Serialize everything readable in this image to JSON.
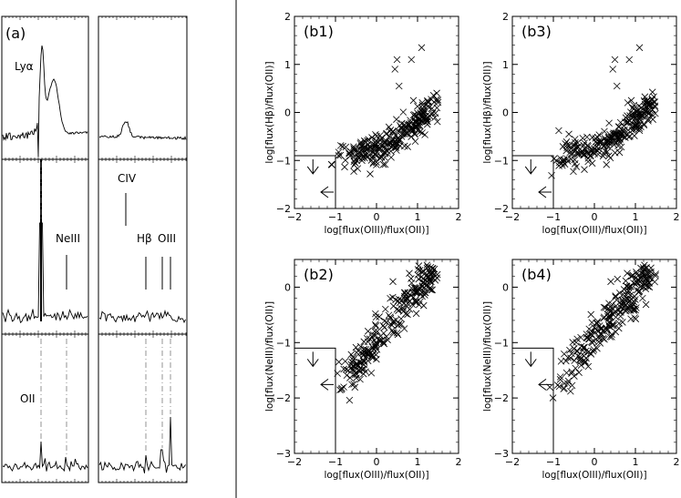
{
  "chart_data": [
    {
      "type": "line",
      "panel": "(a)",
      "description_note": "",
      "labels": {
        "panel": "(a)",
        "lya": "Lyα",
        "civ": "CIV",
        "neiii": "NeIII",
        "hbeta": "Hβ",
        "oiii": "OIII",
        "oii": "OII"
      }
    },
    {
      "type": "scatter",
      "panel": "(b1)",
      "xlabel": "log[flux(OIII)/flux(OII)]",
      "ylabel": "log[flux(Hβ)/flux(OII)]",
      "xlim": [
        -2,
        2
      ],
      "ylim": [
        -2,
        2
      ],
      "xticks": [
        "−2",
        "−1",
        "0",
        "1",
        "2"
      ],
      "yticks": [
        "−2",
        "−1",
        "0",
        "1",
        "2"
      ],
      "limit_box": {
        "x": -1.0,
        "y": -0.9
      },
      "seed": 11
    },
    {
      "type": "scatter",
      "panel": "(b3)",
      "xlabel": "log[flux(OIII)/flux(OII)]",
      "ylabel": "log[flux(Hβ)/flux(OII)]",
      "xlim": [
        -2,
        2
      ],
      "ylim": [
        -2,
        2
      ],
      "xticks": [
        "−2",
        "−1",
        "0",
        "1",
        "2"
      ],
      "yticks": [
        "−2",
        "−1",
        "0",
        "1",
        "2"
      ],
      "limit_box": {
        "x": -1.0,
        "y": -0.9
      },
      "seed": 23
    },
    {
      "type": "scatter",
      "panel": "(b2)",
      "xlabel": "log[flux(OIII)/flux(OII)]",
      "ylabel": "log[flux(NeIII)/flux(OII)]",
      "xlim": [
        -2,
        2
      ],
      "ylim": [
        -3,
        0.5
      ],
      "xticks": [
        "−2",
        "−1",
        "0",
        "1",
        "2"
      ],
      "yticks": [
        "−3",
        "−2",
        "−1",
        "0"
      ],
      "limit_box": {
        "x": -1.0,
        "y": -1.1
      },
      "seed": 37
    },
    {
      "type": "scatter",
      "panel": "(b4)",
      "xlabel": "log[flux(OIII)/flux(OII)]",
      "ylabel": "log[flux(NeIII)/flux(OII)]",
      "xlim": [
        -2,
        2
      ],
      "ylim": [
        -3,
        0.5
      ],
      "xticks": [
        "−2",
        "−1",
        "0",
        "1",
        "2"
      ],
      "yticks": [
        "−3",
        "−2",
        "−1",
        "0"
      ],
      "limit_box": {
        "x": -1.0,
        "y": -1.1
      },
      "seed": 51
    }
  ]
}
